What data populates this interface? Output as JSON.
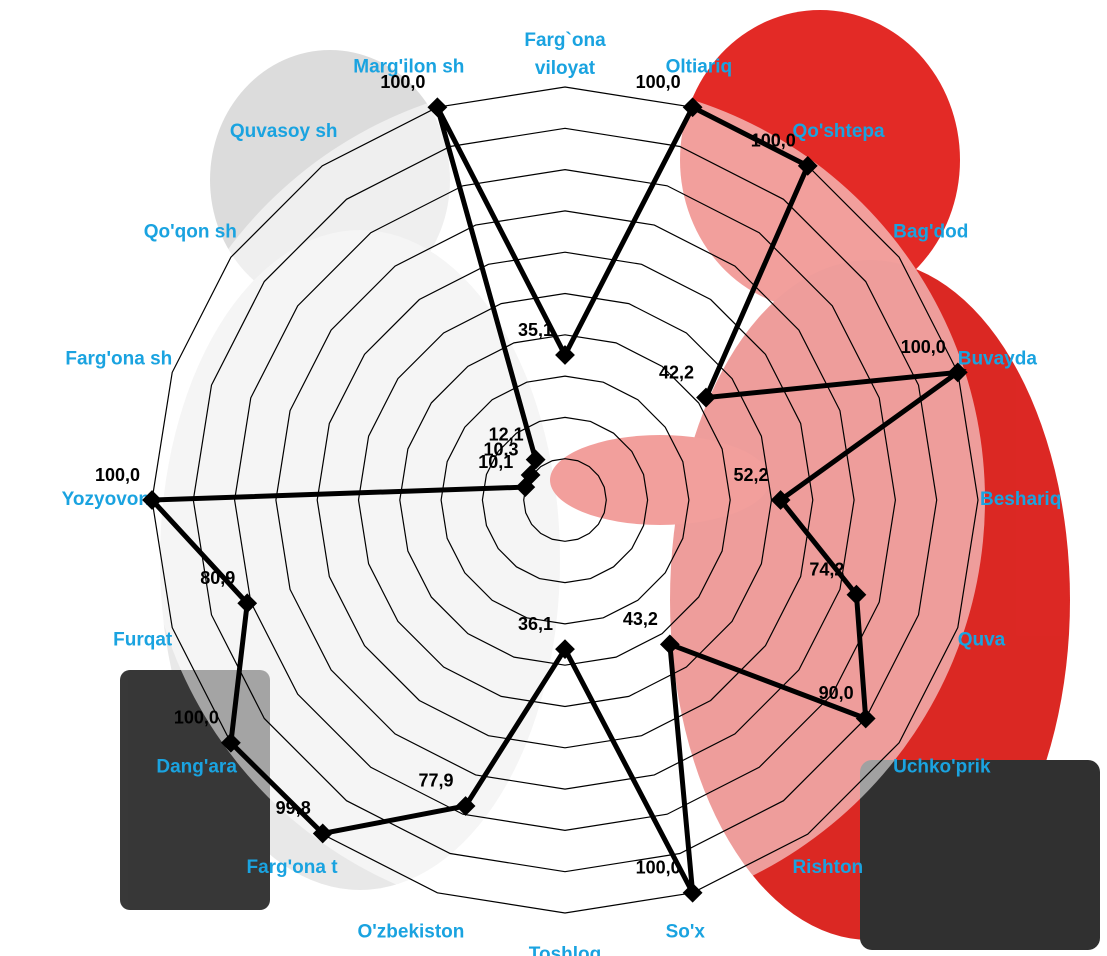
{
  "chart_data": {
    "type": "radar",
    "categories": [
      "Farg`ona viloyat",
      "Oltiariq",
      "Qo'shtepa",
      "Bag'dod",
      "Buvayda",
      "Beshariq",
      "Quva",
      "Uchko'prik",
      "Rishton",
      "So'x",
      "Toshloq",
      "O'zbekiston",
      "Farg'ona t",
      "Dang'ara",
      "Furqat",
      "Yozyovon",
      "Farg'ona sh",
      "Qo'qon sh",
      "Quvasoy sh",
      "Marg'ilon sh"
    ],
    "values": [
      35.1,
      100.0,
      100.0,
      42.2,
      100.0,
      52.2,
      74.2,
      90.0,
      43.2,
      100.0,
      36.1,
      77.9,
      99.8,
      100.0,
      80.9,
      100.0,
      10.1,
      10.3,
      12.1,
      100.0
    ],
    "value_labels": [
      "35,1",
      "100,0",
      "100,0",
      "42,2",
      "100,0",
      "52,2",
      "74,2",
      "90,0",
      "43,2",
      "100,0",
      "36,1",
      "77,9",
      "99,8",
      "100,0",
      "80,9",
      "100,0",
      "10,1",
      "10,3",
      "12,1",
      "100,0"
    ],
    "color": "#000000",
    "label_color": "#1aa3e0",
    "ylim": [
      0,
      100
    ],
    "grid": true
  }
}
